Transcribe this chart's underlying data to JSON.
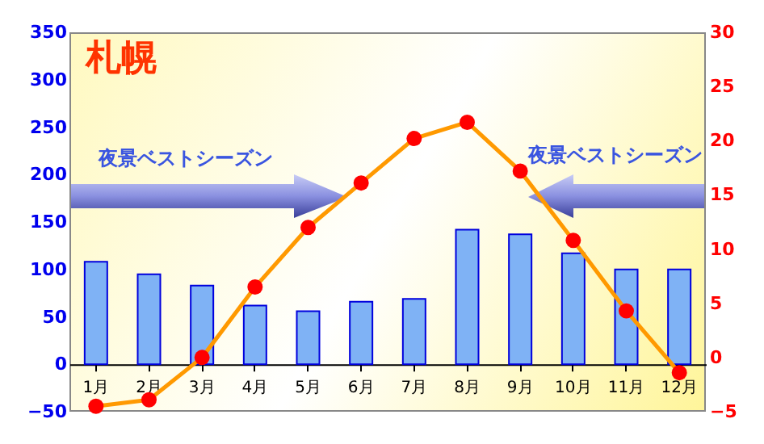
{
  "chart_data": {
    "type": "bar",
    "title": "札幌",
    "categories": [
      "1月",
      "2月",
      "3月",
      "4月",
      "5月",
      "6月",
      "7月",
      "8月",
      "9月",
      "10月",
      "11月",
      "12月"
    ],
    "series": [
      {
        "color": "#7fb2f5",
        "values": [
          108,
          95,
          83,
          62,
          56,
          66,
          69,
          142,
          137,
          117,
          100,
          100
        ]
      },
      {
        "type": "line",
        "axis": "y2",
        "color": "#ff9900",
        "values": [
          -4.5,
          -3.9,
          0,
          6.5,
          12.0,
          16.1,
          20.2,
          21.7,
          17.2,
          10.8,
          4.3,
          -1.4
        ]
      }
    ],
    "ylim": [
      -50,
      350
    ],
    "yticks": [
      -50,
      0,
      50,
      100,
      150,
      200,
      250,
      300,
      350
    ],
    "y2lim": [
      -5,
      30
    ],
    "y2ticks": [
      -5,
      0,
      5,
      10,
      15,
      20,
      25,
      30
    ],
    "annotations": [
      "夜景ベストシーズン",
      "夜景ベストシーズン"
    ],
    "marker": "circle",
    "grid": false
  }
}
